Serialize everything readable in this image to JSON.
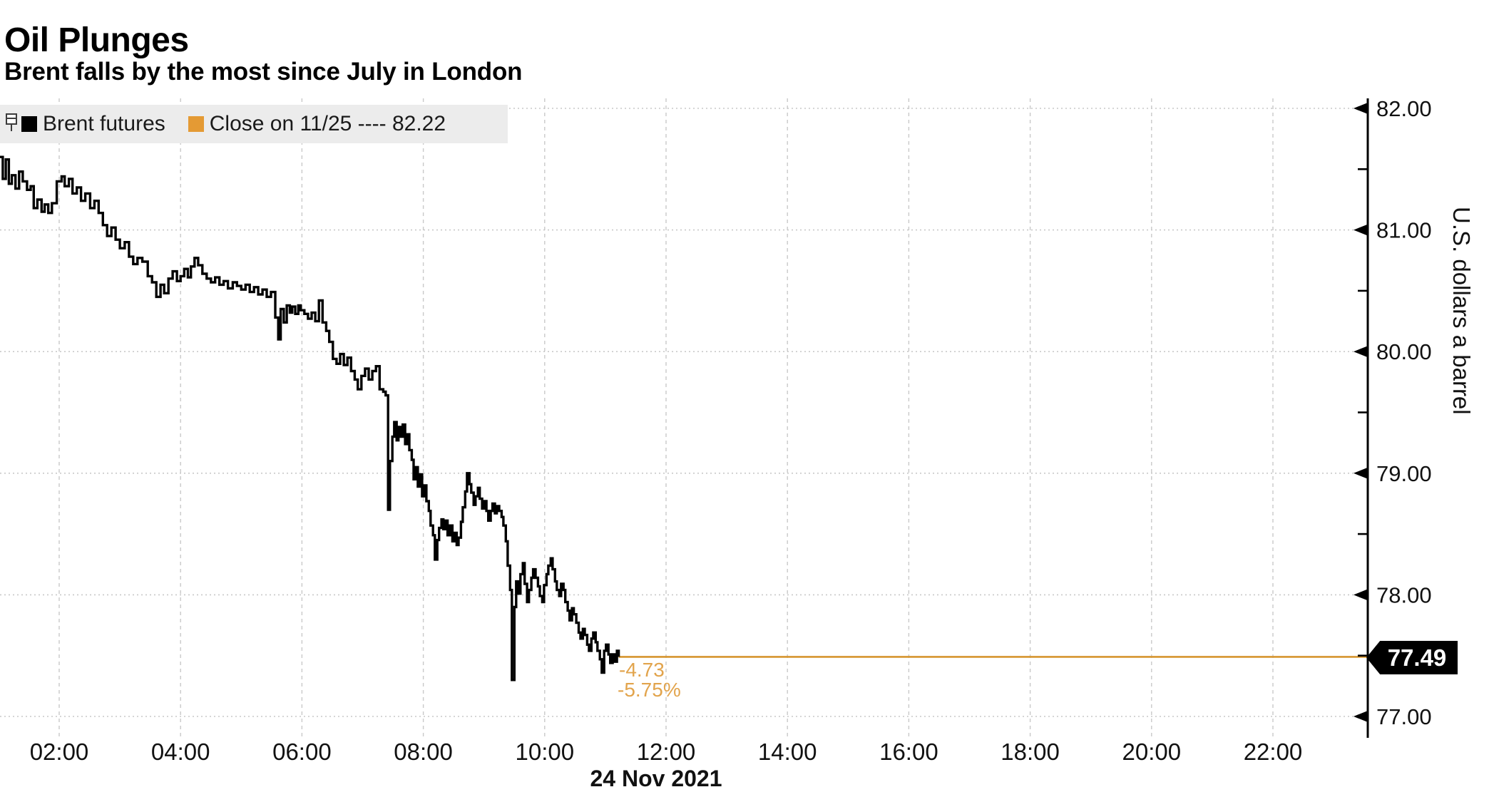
{
  "header": {
    "title": "Oil Plunges",
    "subtitle": "Brent falls by the most since July in London"
  },
  "legend": {
    "items": [
      {
        "label": "Brent futures",
        "swatch_color": "#000000"
      },
      {
        "label": "Close on 11/25 ---- 82.22",
        "swatch_color": "#E49A34"
      }
    ]
  },
  "annotations": {
    "net_change": "-4.73",
    "pct_change": "-5.75%"
  },
  "price_tag": {
    "value": "77.49"
  },
  "axis_titles": {
    "y": "U.S. dollars a barrel"
  },
  "x_date_label": "24 Nov 2021",
  "colors": {
    "accent_orange": "#E49A34",
    "close_line_orange": "#D6952F",
    "annotation_orange": "#E2A44C",
    "series_black": "#000000",
    "grid_gray": "#c9c9c9",
    "legend_bg": "#ececec",
    "price_tag_bg": "#000000",
    "price_tag_text": "#ffffff"
  },
  "chart_data": {
    "type": "line",
    "title": "Oil Plunges",
    "subtitle": "Brent falls by the most since July in London",
    "ylabel": "U.S. dollars a barrel",
    "ylim": [
      76.8,
      82.1
    ],
    "grid": true,
    "legend_position": "top-left",
    "x_axis": {
      "labels": [
        "02:00",
        "04:00",
        "06:00",
        "08:00",
        "10:00",
        "12:00",
        "14:00",
        "16:00",
        "18:00",
        "20:00",
        "22:00"
      ],
      "hours": [
        2,
        4,
        6,
        8,
        10,
        12,
        14,
        16,
        18,
        20,
        22
      ],
      "date": "24 Nov 2021"
    },
    "y_axis": {
      "major": [
        82,
        81,
        80,
        79,
        78,
        77
      ],
      "labels": [
        "82.00",
        "81.00",
        "80.00",
        "79.00",
        "78.00",
        "77.00"
      ],
      "minor": [
        81.5,
        80.5,
        79.5,
        78.5,
        77.5
      ]
    },
    "close_reference": {
      "label": "Close on 11/25",
      "value": 82.22
    },
    "last_price": {
      "value": 77.49,
      "net_change": -4.73,
      "pct_change": -5.75,
      "time_hour": 11.22
    },
    "series": [
      {
        "name": "Brent futures",
        "color": "#000000",
        "points": [
          [
            1.02,
            81.6
          ],
          [
            1.07,
            81.42
          ],
          [
            1.12,
            81.58
          ],
          [
            1.17,
            81.38
          ],
          [
            1.22,
            81.45
          ],
          [
            1.28,
            81.34
          ],
          [
            1.34,
            81.48
          ],
          [
            1.4,
            81.4
          ],
          [
            1.47,
            81.33
          ],
          [
            1.53,
            81.36
          ],
          [
            1.58,
            81.18
          ],
          [
            1.64,
            81.25
          ],
          [
            1.71,
            81.15
          ],
          [
            1.76,
            81.21
          ],
          [
            1.82,
            81.14
          ],
          [
            1.88,
            81.22
          ],
          [
            1.96,
            81.4
          ],
          [
            2.04,
            81.44
          ],
          [
            2.09,
            81.36
          ],
          [
            2.16,
            81.42
          ],
          [
            2.22,
            81.3
          ],
          [
            2.29,
            81.35
          ],
          [
            2.36,
            81.24
          ],
          [
            2.43,
            81.3
          ],
          [
            2.51,
            81.18
          ],
          [
            2.58,
            81.24
          ],
          [
            2.65,
            81.14
          ],
          [
            2.72,
            81.04
          ],
          [
            2.79,
            80.95
          ],
          [
            2.86,
            81.02
          ],
          [
            2.93,
            80.92
          ],
          [
            3.0,
            80.85
          ],
          [
            3.08,
            80.9
          ],
          [
            3.15,
            80.78
          ],
          [
            3.22,
            80.72
          ],
          [
            3.29,
            80.77
          ],
          [
            3.37,
            80.74
          ],
          [
            3.46,
            80.62
          ],
          [
            3.53,
            80.57
          ],
          [
            3.6,
            80.45
          ],
          [
            3.67,
            80.55
          ],
          [
            3.73,
            80.48
          ],
          [
            3.8,
            80.6
          ],
          [
            3.87,
            80.66
          ],
          [
            3.94,
            80.58
          ],
          [
            4.0,
            80.62
          ],
          [
            4.06,
            80.68
          ],
          [
            4.12,
            80.61
          ],
          [
            4.17,
            80.7
          ],
          [
            4.23,
            80.77
          ],
          [
            4.29,
            80.71
          ],
          [
            4.36,
            80.64
          ],
          [
            4.43,
            80.6
          ],
          [
            4.5,
            80.57
          ],
          [
            4.57,
            80.61
          ],
          [
            4.64,
            80.55
          ],
          [
            4.71,
            80.58
          ],
          [
            4.78,
            80.52
          ],
          [
            4.86,
            80.57
          ],
          [
            4.93,
            80.54
          ],
          [
            5.0,
            80.51
          ],
          [
            5.07,
            80.55
          ],
          [
            5.14,
            80.49
          ],
          [
            5.21,
            80.53
          ],
          [
            5.28,
            80.47
          ],
          [
            5.35,
            80.51
          ],
          [
            5.42,
            80.45
          ],
          [
            5.49,
            80.49
          ],
          [
            5.56,
            80.28
          ],
          [
            5.61,
            80.1
          ],
          [
            5.65,
            80.35
          ],
          [
            5.7,
            80.24
          ],
          [
            5.75,
            80.38
          ],
          [
            5.8,
            80.32
          ],
          [
            5.84,
            80.37
          ],
          [
            5.89,
            80.31
          ],
          [
            5.94,
            80.38
          ],
          [
            5.98,
            80.34
          ],
          [
            6.04,
            80.31
          ],
          [
            6.1,
            80.27
          ],
          [
            6.16,
            80.32
          ],
          [
            6.22,
            80.25
          ],
          [
            6.28,
            80.42
          ],
          [
            6.34,
            80.24
          ],
          [
            6.4,
            80.17
          ],
          [
            6.45,
            80.08
          ],
          [
            6.51,
            79.94
          ],
          [
            6.57,
            79.9
          ],
          [
            6.63,
            79.98
          ],
          [
            6.69,
            79.89
          ],
          [
            6.75,
            79.95
          ],
          [
            6.81,
            79.84
          ],
          [
            6.87,
            79.77
          ],
          [
            6.92,
            79.69
          ],
          [
            6.98,
            79.8
          ],
          [
            7.04,
            79.86
          ],
          [
            7.1,
            79.77
          ],
          [
            7.16,
            79.84
          ],
          [
            7.22,
            79.88
          ],
          [
            7.28,
            79.69
          ],
          [
            7.34,
            79.67
          ],
          [
            7.38,
            79.64
          ],
          [
            7.42,
            78.7
          ],
          [
            7.45,
            79.1
          ],
          [
            7.49,
            79.3
          ],
          [
            7.52,
            79.42
          ],
          [
            7.56,
            79.27
          ],
          [
            7.59,
            79.38
          ],
          [
            7.63,
            79.3
          ],
          [
            7.66,
            79.4
          ],
          [
            7.7,
            79.24
          ],
          [
            7.73,
            79.32
          ],
          [
            7.77,
            79.19
          ],
          [
            7.81,
            79.11
          ],
          [
            7.84,
            78.95
          ],
          [
            7.88,
            79.05
          ],
          [
            7.91,
            78.89
          ],
          [
            7.95,
            78.99
          ],
          [
            7.98,
            78.81
          ],
          [
            8.02,
            78.9
          ],
          [
            8.05,
            78.77
          ],
          [
            8.09,
            78.69
          ],
          [
            8.12,
            78.57
          ],
          [
            8.16,
            78.49
          ],
          [
            8.19,
            78.29
          ],
          [
            8.23,
            78.45
          ],
          [
            8.26,
            78.55
          ],
          [
            8.3,
            78.62
          ],
          [
            8.33,
            78.54
          ],
          [
            8.37,
            78.61
          ],
          [
            8.4,
            78.49
          ],
          [
            8.44,
            78.57
          ],
          [
            8.48,
            78.44
          ],
          [
            8.51,
            78.51
          ],
          [
            8.55,
            78.41
          ],
          [
            8.58,
            78.47
          ],
          [
            8.62,
            78.6
          ],
          [
            8.65,
            78.72
          ],
          [
            8.69,
            78.85
          ],
          [
            8.72,
            79.0
          ],
          [
            8.76,
            78.91
          ],
          [
            8.79,
            78.84
          ],
          [
            8.83,
            78.74
          ],
          [
            8.86,
            78.81
          ],
          [
            8.9,
            78.88
          ],
          [
            8.93,
            78.79
          ],
          [
            8.97,
            78.71
          ],
          [
            9.0,
            78.77
          ],
          [
            9.04,
            78.69
          ],
          [
            9.07,
            78.61
          ],
          [
            9.11,
            78.69
          ],
          [
            9.14,
            78.75
          ],
          [
            9.18,
            78.67
          ],
          [
            9.21,
            78.73
          ],
          [
            9.25,
            78.69
          ],
          [
            9.29,
            78.64
          ],
          [
            9.32,
            78.57
          ],
          [
            9.36,
            78.44
          ],
          [
            9.39,
            78.24
          ],
          [
            9.43,
            78.04
          ],
          [
            9.46,
            77.3
          ],
          [
            9.5,
            77.9
          ],
          [
            9.53,
            78.11
          ],
          [
            9.57,
            78.01
          ],
          [
            9.6,
            78.17
          ],
          [
            9.64,
            78.26
          ],
          [
            9.67,
            78.09
          ],
          [
            9.71,
            77.94
          ],
          [
            9.74,
            78.04
          ],
          [
            9.78,
            78.14
          ],
          [
            9.81,
            78.21
          ],
          [
            9.85,
            78.14
          ],
          [
            9.89,
            78.07
          ],
          [
            9.92,
            77.99
          ],
          [
            9.96,
            77.94
          ],
          [
            9.99,
            78.08
          ],
          [
            10.03,
            78.17
          ],
          [
            10.06,
            78.24
          ],
          [
            10.1,
            78.3
          ],
          [
            10.13,
            78.21
          ],
          [
            10.17,
            78.11
          ],
          [
            10.2,
            78.04
          ],
          [
            10.24,
            77.99
          ],
          [
            10.27,
            78.09
          ],
          [
            10.31,
            78.04
          ],
          [
            10.34,
            77.94
          ],
          [
            10.38,
            77.87
          ],
          [
            10.41,
            77.79
          ],
          [
            10.45,
            77.89
          ],
          [
            10.48,
            77.84
          ],
          [
            10.52,
            77.77
          ],
          [
            10.56,
            77.69
          ],
          [
            10.59,
            77.64
          ],
          [
            10.63,
            77.72
          ],
          [
            10.66,
            77.67
          ],
          [
            10.7,
            77.59
          ],
          [
            10.73,
            77.54
          ],
          [
            10.77,
            77.64
          ],
          [
            10.8,
            77.69
          ],
          [
            10.84,
            77.61
          ],
          [
            10.87,
            77.54
          ],
          [
            10.91,
            77.47
          ],
          [
            10.94,
            77.36
          ],
          [
            10.98,
            77.54
          ],
          [
            11.01,
            77.59
          ],
          [
            11.05,
            77.51
          ],
          [
            11.08,
            77.44
          ],
          [
            11.12,
            77.51
          ],
          [
            11.15,
            77.45
          ],
          [
            11.19,
            77.54
          ],
          [
            11.22,
            77.49
          ]
        ]
      }
    ]
  }
}
